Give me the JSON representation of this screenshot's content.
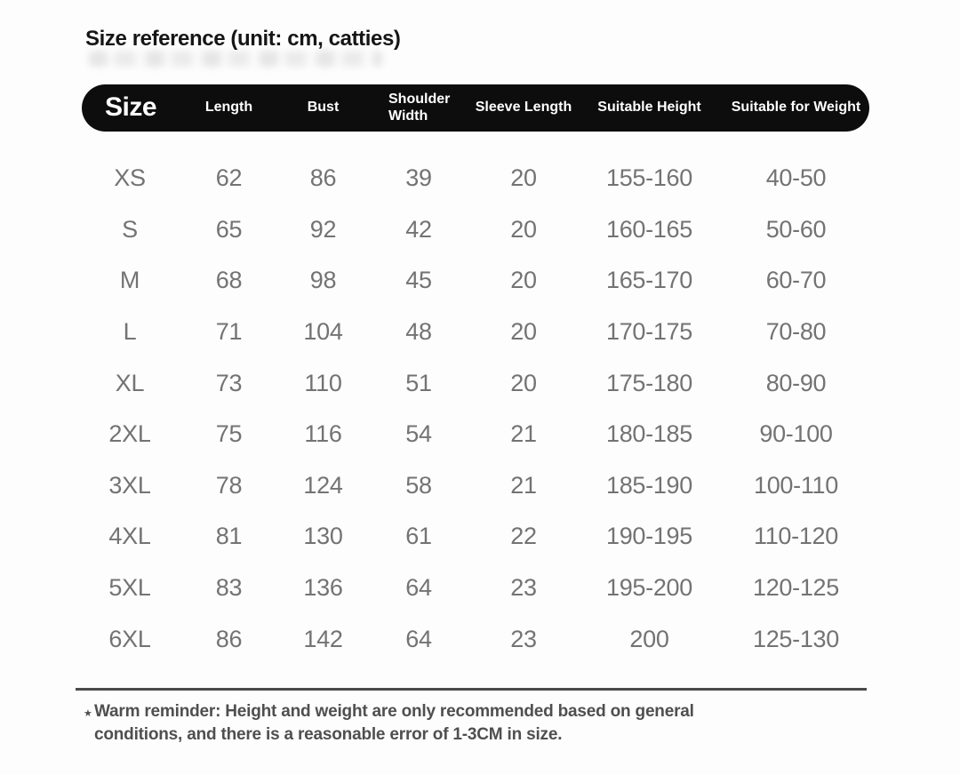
{
  "page": {
    "title": "Size reference (unit: cm, catties)",
    "note_star": "★",
    "note": "Warm reminder: Height and weight are only recommended based on general conditions, and there is a reasonable error of 1-3CM in size."
  },
  "colors": {
    "background": "#fdfdfd",
    "header_bg": "#0d0d0d",
    "header_text": "#ffffff",
    "title_text": "#161616",
    "cell_text": "#737373",
    "note_text": "#4f4f4f",
    "divider": "#4a4a4a"
  },
  "chart_data": {
    "type": "table",
    "title": "Size reference (unit: cm, catties)",
    "columns": [
      "Size",
      "Length",
      "Bust",
      "Shoulder Width",
      "Sleeve Length",
      "Suitable Height",
      "Suitable for Weight"
    ],
    "rows": [
      [
        "XS",
        "62",
        "86",
        "39",
        "20",
        "155-160",
        "40-50"
      ],
      [
        "S",
        "65",
        "92",
        "42",
        "20",
        "160-165",
        "50-60"
      ],
      [
        "M",
        "68",
        "98",
        "45",
        "20",
        "165-170",
        "60-70"
      ],
      [
        "L",
        "71",
        "104",
        "48",
        "20",
        "170-175",
        "70-80"
      ],
      [
        "XL",
        "73",
        "110",
        "51",
        "20",
        "175-180",
        "80-90"
      ],
      [
        "2XL",
        "75",
        "116",
        "54",
        "21",
        "180-185",
        "90-100"
      ],
      [
        "3XL",
        "78",
        "124",
        "58",
        "21",
        "185-190",
        "100-110"
      ],
      [
        "4XL",
        "81",
        "130",
        "61",
        "22",
        "190-195",
        "110-120"
      ],
      [
        "5XL",
        "83",
        "136",
        "64",
        "23",
        "195-200",
        "120-125"
      ],
      [
        "6XL",
        "86",
        "142",
        "64",
        "23",
        "200",
        "125-130"
      ]
    ],
    "footnote": "Warm reminder: Height and weight are only recommended based on general conditions, and there is a reasonable error of 1-3CM in size.",
    "units": "cm, catties",
    "legend_position": "none",
    "grid": false
  }
}
